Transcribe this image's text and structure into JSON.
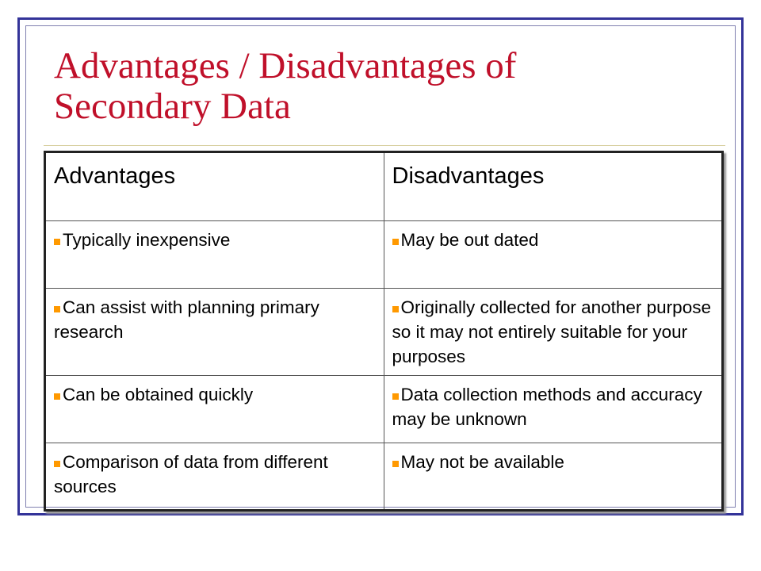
{
  "title": "Advantages / Disadvantages of Secondary Data",
  "table": {
    "header": [
      "Advantages",
      "Disadvantages"
    ],
    "rows": [
      [
        "Typically inexpensive",
        "May be out dated"
      ],
      [
        "Can assist with planning primary research",
        "Originally collected for another purpose so it may not entirely suitable for your purposes"
      ],
      [
        "Can be obtained quickly",
        "Data collection methods and accuracy may be unknown"
      ],
      [
        "Comparison of data from different sources",
        "May not be available"
      ]
    ]
  }
}
